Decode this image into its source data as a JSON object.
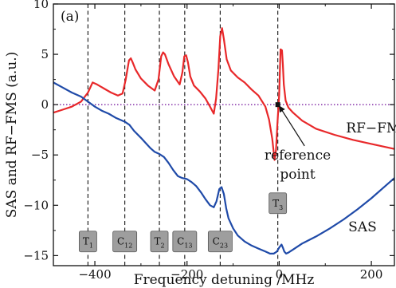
{
  "chart_data": {
    "type": "line",
    "panel_label": "(a)",
    "xlabel": "Frequency detuning /MHz",
    "ylabel": "SAS and RF−FMS (a.u.)",
    "xlim": [
      -490,
      250
    ],
    "ylim": [
      -16,
      10
    ],
    "x_ticks": [
      -400,
      -200,
      0,
      200
    ],
    "x_tick_labels": [
      "−400",
      "−200",
      "0",
      "200"
    ],
    "y_ticks": [
      -15,
      -10,
      -5,
      0,
      5,
      10
    ],
    "y_tick_labels": [
      "−15",
      "−10",
      "−5",
      "0",
      "5",
      "10"
    ],
    "grid": false,
    "zero_line": {
      "y": 0,
      "color": "#7b1fa2",
      "style": "dotted"
    },
    "series": [
      {
        "name": "RF−FMS",
        "color": "#e8282a",
        "x": [
          -490,
          -470,
          -450,
          -430,
          -415,
          -405,
          -395,
          -380,
          -365,
          -350,
          -340,
          -333,
          -326,
          -322,
          -318,
          -312,
          -300,
          -285,
          -270,
          -262,
          -256,
          -252,
          -248,
          -240,
          -228,
          -216,
          -210,
          -206,
          -202,
          -198,
          -193,
          -185,
          -172,
          -160,
          -150,
          -142,
          -137,
          -132,
          -128,
          -124,
          -120,
          -114,
          -105,
          -90,
          -75,
          -60,
          -45,
          -30,
          -22,
          -15,
          -10,
          -7,
          -4,
          0,
          3,
          6,
          8,
          10,
          14,
          20,
          30,
          50,
          80,
          120,
          160,
          200,
          250
        ],
        "y": [
          -0.8,
          -0.5,
          -0.2,
          0.3,
          1.2,
          2.2,
          2.0,
          1.6,
          1.2,
          0.9,
          1.1,
          2.5,
          4.4,
          4.6,
          4.2,
          3.5,
          2.6,
          1.9,
          1.4,
          2.5,
          4.8,
          5.2,
          5.0,
          4.0,
          2.8,
          2.0,
          3.2,
          4.8,
          4.9,
          4.2,
          2.8,
          1.9,
          1.3,
          0.6,
          -0.2,
          -0.9,
          0.6,
          3.5,
          6.8,
          7.6,
          6.5,
          4.5,
          3.4,
          2.7,
          2.2,
          1.5,
          0.9,
          -0.2,
          -1.5,
          -3.4,
          -5.5,
          -4.5,
          -2.0,
          1.0,
          5.5,
          5.4,
          4.0,
          2.0,
          0.4,
          -0.3,
          -0.8,
          -1.6,
          -2.4,
          -3.0,
          -3.5,
          -3.9,
          -4.4
        ]
      },
      {
        "name": "SAS",
        "color": "#1f4aa8",
        "x": [
          -490,
          -470,
          -450,
          -430,
          -415,
          -400,
          -385,
          -370,
          -355,
          -345,
          -335,
          -325,
          -315,
          -300,
          -290,
          -280,
          -270,
          -260,
          -250,
          -240,
          -230,
          -220,
          -210,
          -200,
          -190,
          -180,
          -170,
          -160,
          -150,
          -142,
          -136,
          -130,
          -125,
          -120,
          -115,
          -110,
          -100,
          -90,
          -75,
          -60,
          -45,
          -30,
          -20,
          -12,
          -5,
          0,
          5,
          8,
          11,
          15,
          20,
          30,
          50,
          80,
          110,
          140,
          170,
          200,
          230,
          250
        ],
        "y": [
          2.2,
          1.7,
          1.2,
          0.8,
          0.3,
          -0.2,
          -0.6,
          -0.9,
          -1.3,
          -1.5,
          -1.7,
          -2.0,
          -2.6,
          -3.3,
          -3.8,
          -4.3,
          -4.7,
          -4.9,
          -5.2,
          -5.8,
          -6.5,
          -7.1,
          -7.3,
          -7.4,
          -7.7,
          -8.1,
          -8.7,
          -9.4,
          -10.0,
          -10.2,
          -9.6,
          -8.4,
          -8.2,
          -8.9,
          -10.3,
          -11.3,
          -12.3,
          -13.0,
          -13.6,
          -14.0,
          -14.3,
          -14.6,
          -14.8,
          -14.8,
          -14.6,
          -14.2,
          -13.9,
          -14.2,
          -14.6,
          -14.8,
          -14.7,
          -14.4,
          -13.8,
          -13.1,
          -12.3,
          -11.4,
          -10.4,
          -9.3,
          -8.1,
          -7.3
        ]
      }
    ],
    "dashed_lines_x": [
      -415,
      -335,
      -260,
      -205,
      -128,
      -3
    ],
    "resonance_markers": [
      {
        "main": "T",
        "sub": "1",
        "x": -415,
        "y": -13.6
      },
      {
        "main": "C",
        "sub": "12",
        "x": -335,
        "y": -13.6
      },
      {
        "main": "T",
        "sub": "2",
        "x": -260,
        "y": -13.6
      },
      {
        "main": "C",
        "sub": "13",
        "x": -205,
        "y": -13.6
      },
      {
        "main": "C",
        "sub": "23",
        "x": -128,
        "y": -13.6
      },
      {
        "main": "T",
        "sub": "3",
        "x": -3,
        "y": -9.8
      }
    ],
    "annotations": {
      "rf_fms_label": {
        "text": "RF−FMS",
        "x": 145,
        "y": -2.3
      },
      "sas_label": {
        "text": "SAS",
        "x": 150,
        "y": -12.1
      },
      "reference_line1": "reference",
      "reference_line2": "point",
      "reference_text_x": 40,
      "reference_text_y1": -5.0,
      "reference_text_y2": -6.9,
      "reference_point": {
        "x": -3,
        "y": 0
      },
      "reference_arrow_tail": {
        "x": 55,
        "y": -4.1
      }
    }
  }
}
